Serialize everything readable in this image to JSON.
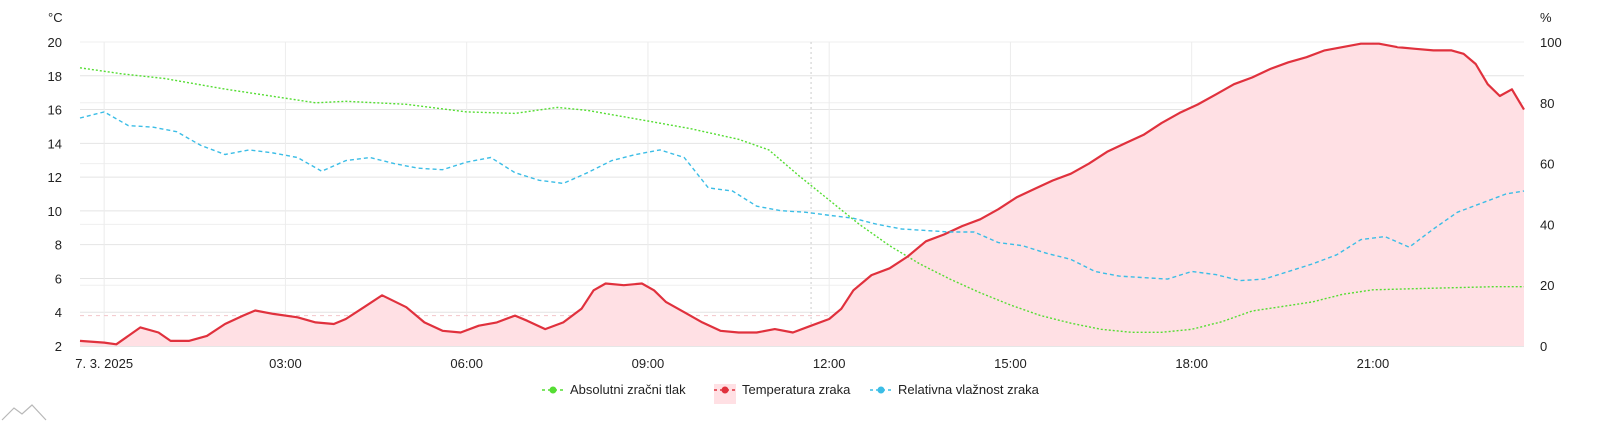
{
  "chart_data": {
    "type": "line",
    "title": "",
    "x_ticks": [
      "7. 3. 2025",
      "03:00",
      "06:00",
      "09:00",
      "12:00",
      "15:00",
      "18:00",
      "21:00"
    ],
    "x_range_hours": [
      -0.4,
      23.5
    ],
    "y_left": {
      "unit": "°C",
      "range": [
        2,
        20
      ],
      "ticks": [
        2,
        4,
        6,
        8,
        10,
        12,
        14,
        16,
        18,
        20
      ]
    },
    "y_right": {
      "unit": "%",
      "range": [
        0,
        100
      ],
      "ticks": [
        0,
        20,
        40,
        60,
        80,
        100
      ]
    },
    "legend_placement": "bottom-center",
    "grid": true,
    "series": [
      {
        "name": "Absolutni zračni tlak",
        "color": "#55dd33",
        "axis": "right",
        "style": "dashed",
        "points": [
          [
            -0.4,
            91.5
          ],
          [
            0.3,
            89.5
          ],
          [
            1.0,
            88.0
          ],
          [
            2.0,
            84.5
          ],
          [
            3.0,
            81.5
          ],
          [
            3.5,
            80.0
          ],
          [
            4.0,
            80.5
          ],
          [
            5.0,
            79.5
          ],
          [
            6.0,
            77.0
          ],
          [
            6.8,
            76.5
          ],
          [
            7.5,
            78.5
          ],
          [
            8.0,
            77.5
          ],
          [
            9.0,
            74.0
          ],
          [
            9.7,
            71.5
          ],
          [
            10.5,
            68.0
          ],
          [
            11.0,
            64.5
          ],
          [
            11.5,
            56.0
          ],
          [
            12.0,
            48.0
          ],
          [
            12.5,
            40.0
          ],
          [
            13.0,
            33.0
          ],
          [
            13.5,
            27.0
          ],
          [
            14.0,
            22.0
          ],
          [
            14.5,
            17.5
          ],
          [
            15.0,
            13.5
          ],
          [
            15.5,
            10.0
          ],
          [
            16.0,
            7.5
          ],
          [
            16.5,
            5.5
          ],
          [
            17.0,
            4.5
          ],
          [
            17.5,
            4.5
          ],
          [
            18.0,
            5.5
          ],
          [
            18.5,
            8.0
          ],
          [
            19.0,
            11.5
          ],
          [
            19.5,
            13.0
          ],
          [
            20.0,
            14.5
          ],
          [
            20.5,
            17.0
          ],
          [
            21.0,
            18.5
          ],
          [
            22.0,
            19.0
          ],
          [
            23.0,
            19.5
          ],
          [
            23.5,
            19.5
          ]
        ]
      },
      {
        "name": "Temperatura zraka",
        "color": "#e0313d",
        "fill": "#ffe0e4",
        "axis": "left",
        "style": "solid",
        "points": [
          [
            -0.4,
            2.3
          ],
          [
            0.0,
            2.2
          ],
          [
            0.2,
            2.1
          ],
          [
            0.6,
            3.1
          ],
          [
            0.9,
            2.8
          ],
          [
            1.1,
            2.3
          ],
          [
            1.4,
            2.3
          ],
          [
            1.7,
            2.6
          ],
          [
            2.0,
            3.3
          ],
          [
            2.3,
            3.8
          ],
          [
            2.5,
            4.1
          ],
          [
            2.8,
            3.9
          ],
          [
            3.2,
            3.7
          ],
          [
            3.5,
            3.4
          ],
          [
            3.8,
            3.3
          ],
          [
            4.0,
            3.6
          ],
          [
            4.3,
            4.3
          ],
          [
            4.6,
            5.0
          ],
          [
            5.0,
            4.3
          ],
          [
            5.3,
            3.4
          ],
          [
            5.6,
            2.9
          ],
          [
            5.9,
            2.8
          ],
          [
            6.2,
            3.2
          ],
          [
            6.5,
            3.4
          ],
          [
            6.8,
            3.8
          ],
          [
            7.0,
            3.5
          ],
          [
            7.3,
            3.0
          ],
          [
            7.6,
            3.4
          ],
          [
            7.9,
            4.2
          ],
          [
            8.1,
            5.3
          ],
          [
            8.3,
            5.7
          ],
          [
            8.6,
            5.6
          ],
          [
            8.9,
            5.7
          ],
          [
            9.1,
            5.3
          ],
          [
            9.3,
            4.6
          ],
          [
            9.6,
            4.0
          ],
          [
            9.9,
            3.4
          ],
          [
            10.2,
            2.9
          ],
          [
            10.5,
            2.8
          ],
          [
            10.8,
            2.8
          ],
          [
            11.1,
            3.0
          ],
          [
            11.4,
            2.8
          ],
          [
            11.7,
            3.2
          ],
          [
            12.0,
            3.6
          ],
          [
            12.2,
            4.2
          ],
          [
            12.4,
            5.3
          ],
          [
            12.7,
            6.2
          ],
          [
            13.0,
            6.6
          ],
          [
            13.3,
            7.3
          ],
          [
            13.6,
            8.2
          ],
          [
            13.9,
            8.6
          ],
          [
            14.2,
            9.1
          ],
          [
            14.5,
            9.5
          ],
          [
            14.8,
            10.1
          ],
          [
            15.1,
            10.8
          ],
          [
            15.4,
            11.3
          ],
          [
            15.7,
            11.8
          ],
          [
            16.0,
            12.2
          ],
          [
            16.3,
            12.8
          ],
          [
            16.6,
            13.5
          ],
          [
            16.9,
            14.0
          ],
          [
            17.2,
            14.5
          ],
          [
            17.5,
            15.2
          ],
          [
            17.8,
            15.8
          ],
          [
            18.1,
            16.3
          ],
          [
            18.4,
            16.9
          ],
          [
            18.7,
            17.5
          ],
          [
            19.0,
            17.9
          ],
          [
            19.3,
            18.4
          ],
          [
            19.6,
            18.8
          ],
          [
            19.9,
            19.1
          ],
          [
            20.2,
            19.5
          ],
          [
            20.5,
            19.7
          ],
          [
            20.8,
            19.9
          ],
          [
            21.1,
            19.9
          ],
          [
            21.4,
            19.7
          ],
          [
            21.7,
            19.6
          ],
          [
            22.0,
            19.5
          ],
          [
            22.3,
            19.5
          ],
          [
            22.5,
            19.3
          ],
          [
            22.7,
            18.7
          ],
          [
            22.9,
            17.5
          ],
          [
            23.1,
            16.8
          ],
          [
            23.3,
            17.2
          ],
          [
            23.5,
            16.0
          ]
        ]
      },
      {
        "name": "Relativna vlažnost zraka",
        "color": "#3bbde6",
        "axis": "right",
        "style": "dashed",
        "points": [
          [
            -0.4,
            75.0
          ],
          [
            0.0,
            77.0
          ],
          [
            0.4,
            72.5
          ],
          [
            0.8,
            72.0
          ],
          [
            1.2,
            70.5
          ],
          [
            1.6,
            66.0
          ],
          [
            2.0,
            63.0
          ],
          [
            2.4,
            64.5
          ],
          [
            2.8,
            63.5
          ],
          [
            3.2,
            62.0
          ],
          [
            3.6,
            57.5
          ],
          [
            4.0,
            61.0
          ],
          [
            4.4,
            62.0
          ],
          [
            4.8,
            60.0
          ],
          [
            5.2,
            58.5
          ],
          [
            5.6,
            58.0
          ],
          [
            6.0,
            60.5
          ],
          [
            6.4,
            62.0
          ],
          [
            6.8,
            57.0
          ],
          [
            7.2,
            54.5
          ],
          [
            7.6,
            53.5
          ],
          [
            8.0,
            57.0
          ],
          [
            8.4,
            61.0
          ],
          [
            8.8,
            63.0
          ],
          [
            9.2,
            64.5
          ],
          [
            9.6,
            62.0
          ],
          [
            10.0,
            52.0
          ],
          [
            10.4,
            51.0
          ],
          [
            10.8,
            46.0
          ],
          [
            11.2,
            44.5
          ],
          [
            11.6,
            44.0
          ],
          [
            12.0,
            43.0
          ],
          [
            12.4,
            42.0
          ],
          [
            12.8,
            40.0
          ],
          [
            13.2,
            38.5
          ],
          [
            13.6,
            38.0
          ],
          [
            14.0,
            37.5
          ],
          [
            14.4,
            37.5
          ],
          [
            14.8,
            34.0
          ],
          [
            15.2,
            33.0
          ],
          [
            15.6,
            30.5
          ],
          [
            16.0,
            28.5
          ],
          [
            16.4,
            24.5
          ],
          [
            16.8,
            23.0
          ],
          [
            17.2,
            22.5
          ],
          [
            17.6,
            22.0
          ],
          [
            18.0,
            24.5
          ],
          [
            18.4,
            23.5
          ],
          [
            18.8,
            21.5
          ],
          [
            19.2,
            22.0
          ],
          [
            19.6,
            24.5
          ],
          [
            20.0,
            27.0
          ],
          [
            20.4,
            30.0
          ],
          [
            20.8,
            35.0
          ],
          [
            21.2,
            36.0
          ],
          [
            21.6,
            32.5
          ],
          [
            22.0,
            38.5
          ],
          [
            22.4,
            44.0
          ],
          [
            22.8,
            47.0
          ],
          [
            23.2,
            50.0
          ],
          [
            23.5,
            51.0
          ]
        ]
      }
    ]
  }
}
